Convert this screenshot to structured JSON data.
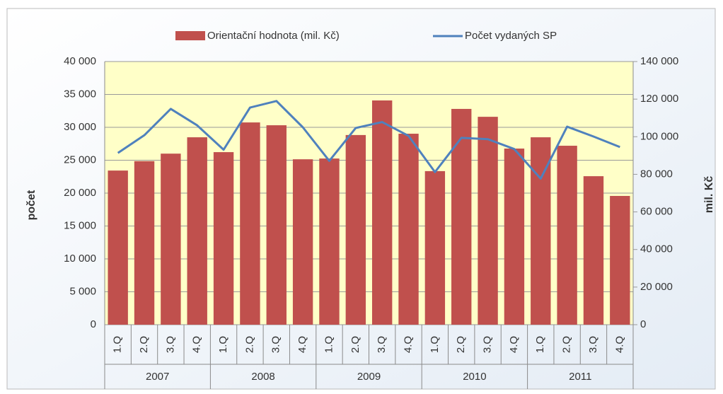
{
  "chart_data": {
    "type": "bar",
    "y_label": "počet",
    "y2_label": "mil. Kč",
    "categories": [
      "1.Q",
      "2.Q",
      "3.Q",
      "4.Q",
      "1.Q",
      "2.Q",
      "3.Q",
      "4.Q",
      "1.Q",
      "2.Q",
      "3.Q",
      "4.Q",
      "1.Q",
      "2.Q",
      "3.Q",
      "4.Q",
      "1.Q",
      "2.Q",
      "3.Q",
      "4.Q"
    ],
    "groups": [
      "2007",
      "2008",
      "2009",
      "2010",
      "2011"
    ],
    "series": [
      {
        "name": "Orientační hodnota (mil. Kč)",
        "type": "bar",
        "axis": "y2",
        "color": "#c0504d",
        "values": [
          82000,
          87000,
          91000,
          99700,
          91800,
          107600,
          106100,
          88000,
          88400,
          100900,
          119300,
          101600,
          81700,
          114800,
          110600,
          93700,
          99700,
          95200,
          79000,
          68500
        ]
      },
      {
        "name": "Počet vydaných SP",
        "type": "line",
        "color": "#4f81bd",
        "values": [
          26100,
          28800,
          32800,
          30300,
          26600,
          33000,
          34000,
          30000,
          24900,
          29900,
          30800,
          28700,
          23200,
          28400,
          28200,
          26700,
          22200,
          30100,
          28600,
          27000
        ]
      }
    ],
    "ylim": [
      0,
      40000
    ],
    "yticks": [
      0,
      {
        "value": 5000,
        "label": "5 000"
      },
      {
        "value": 10000,
        "label": "10 000"
      },
      {
        "value": 15000,
        "label": "15 000"
      },
      {
        "value": 20000,
        "label": "20 000"
      },
      {
        "value": 25000,
        "label": "25 000"
      },
      {
        "value": 30000,
        "label": "30 000"
      },
      {
        "value": 35000,
        "label": "35 000"
      },
      {
        "value": 40000,
        "label": "40 000"
      }
    ],
    "y2lim": [
      0,
      140000
    ],
    "y2ticks": [
      0,
      {
        "value": 20000,
        "label": "20 000"
      },
      {
        "value": 40000,
        "label": "40 000"
      },
      {
        "value": 60000,
        "label": "60 000"
      },
      {
        "value": 80000,
        "label": "80 000"
      },
      {
        "value": 100000,
        "label": "100 000"
      },
      {
        "value": 120000,
        "label": "120 000"
      },
      {
        "value": 140000,
        "label": "140 000"
      }
    ],
    "grid": true,
    "legend": "top",
    "plot_background": "#ffffc8"
  }
}
